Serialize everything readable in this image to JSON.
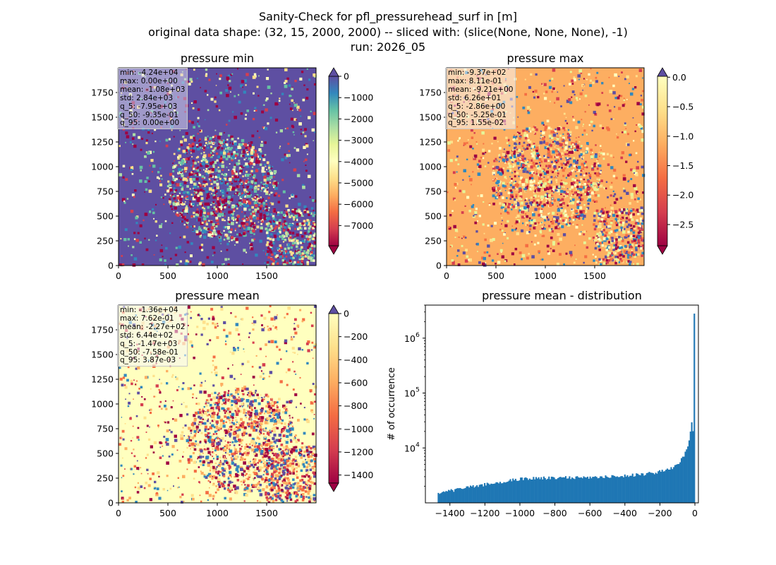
{
  "figure": {
    "title_lines": [
      "Sanity-Check for pfl_pressurehead_surf in [m]",
      "original data shape: (32, 15, 2000, 2000) -- sliced with: (slice(None, None, None), -1)",
      "run: 2026_05"
    ]
  },
  "chart_data": [
    {
      "type": "heatmap",
      "title": "pressure min",
      "colormap": "Spectral",
      "xticks": [
        "0",
        "500",
        "1000",
        "1500"
      ],
      "yticks": [
        "0",
        "250",
        "500",
        "750",
        "1000",
        "1250",
        "1500",
        "1750"
      ],
      "xlim": [
        0,
        2000
      ],
      "ylim": [
        0,
        2000
      ],
      "colorbar": {
        "ticks": [
          "0",
          "−1000",
          "−2000",
          "−3000",
          "−4000",
          "−5000",
          "−6000",
          "−7000"
        ],
        "range": [
          -7950,
          0
        ],
        "extend": "both"
      },
      "stats": [
        "min: -4.24e+04",
        "max: 0.00e+00",
        "mean: -1.08e+03",
        "std: 2.84e+03",
        "q_5: -7.95e+03",
        "q_50: -9.35e-01",
        "q_95: 0.00e+00"
      ]
    },
    {
      "type": "heatmap",
      "title": "pressure max",
      "colormap": "Spectral",
      "xticks": [
        "0",
        "500",
        "1000",
        "1500"
      ],
      "yticks": [
        "0",
        "250",
        "500",
        "750",
        "1000",
        "1250",
        "1500",
        "1750"
      ],
      "xlim": [
        0,
        2000
      ],
      "ylim": [
        0,
        2000
      ],
      "colorbar": {
        "ticks": [
          "0.0",
          "−0.5",
          "−1.0",
          "−1.5",
          "−2.0",
          "−2.5"
        ],
        "range": [
          -2.86,
          0.0155
        ],
        "extend": "both"
      },
      "stats": [
        "min: -9.37e+02",
        "max: 8.11e-01",
        "mean: -9.21e+00",
        "std: 6.26e+01",
        "q_5: -2.86e+00",
        "q_50: -5.25e-01",
        "q_95: 1.55e-02"
      ]
    },
    {
      "type": "heatmap",
      "title": "pressure mean",
      "colormap": "Spectral",
      "xticks": [
        "0",
        "500",
        "1000",
        "1500"
      ],
      "yticks": [
        "0",
        "250",
        "500",
        "750",
        "1000",
        "1250",
        "1500",
        "1750"
      ],
      "xlim": [
        0,
        2000
      ],
      "ylim": [
        0,
        2000
      ],
      "colorbar": {
        "ticks": [
          "0",
          "−200",
          "−400",
          "−600",
          "−800",
          "−1000",
          "−1200",
          "−1400"
        ],
        "range": [
          -1470,
          0.00387
        ],
        "extend": "both"
      },
      "stats": [
        "min: -1.36e+04",
        "max: 7.62e-01",
        "mean: -2.27e+02",
        "std: 6.44e+02",
        "q_5: -1.47e+03",
        "q_50: -7.58e-01",
        "q_95: 3.87e-03"
      ]
    },
    {
      "type": "bar",
      "title": "pressure mean - distribution",
      "ylabel": "# of occurrence",
      "xlabel": "",
      "yscale": "log",
      "xticks": [
        "−1400",
        "−1200",
        "−1000",
        "−800",
        "−600",
        "−400",
        "−200",
        "0"
      ],
      "ytick_labels": [
        "10",
        "10",
        "10"
      ],
      "ytick_exponents": [
        "4",
        "5",
        "6"
      ],
      "xlim": [
        -1540,
        20
      ],
      "ylim": [
        1000,
        4000000
      ],
      "color": "#1f77b4",
      "bins": {
        "start": -1470,
        "end": 0,
        "count": 200
      },
      "counts_approx": [
        {
          "x": -1460,
          "y": 1500
        },
        {
          "x": -1400,
          "y": 1650
        },
        {
          "x": -1300,
          "y": 1900
        },
        {
          "x": -1200,
          "y": 2150
        },
        {
          "x": -1100,
          "y": 2450
        },
        {
          "x": -1000,
          "y": 2700
        },
        {
          "x": -900,
          "y": 2800
        },
        {
          "x": -800,
          "y": 2850
        },
        {
          "x": -700,
          "y": 2900
        },
        {
          "x": -600,
          "y": 2950
        },
        {
          "x": -500,
          "y": 3000
        },
        {
          "x": -400,
          "y": 3100
        },
        {
          "x": -300,
          "y": 3300
        },
        {
          "x": -200,
          "y": 3700
        },
        {
          "x": -150,
          "y": 4000
        },
        {
          "x": -100,
          "y": 5000
        },
        {
          "x": -60,
          "y": 7500
        },
        {
          "x": -30,
          "y": 14000
        },
        {
          "x": -20,
          "y": 30000
        },
        {
          "x": -10,
          "y": 20000
        },
        {
          "x": -3,
          "y": 2800000
        }
      ]
    }
  ]
}
